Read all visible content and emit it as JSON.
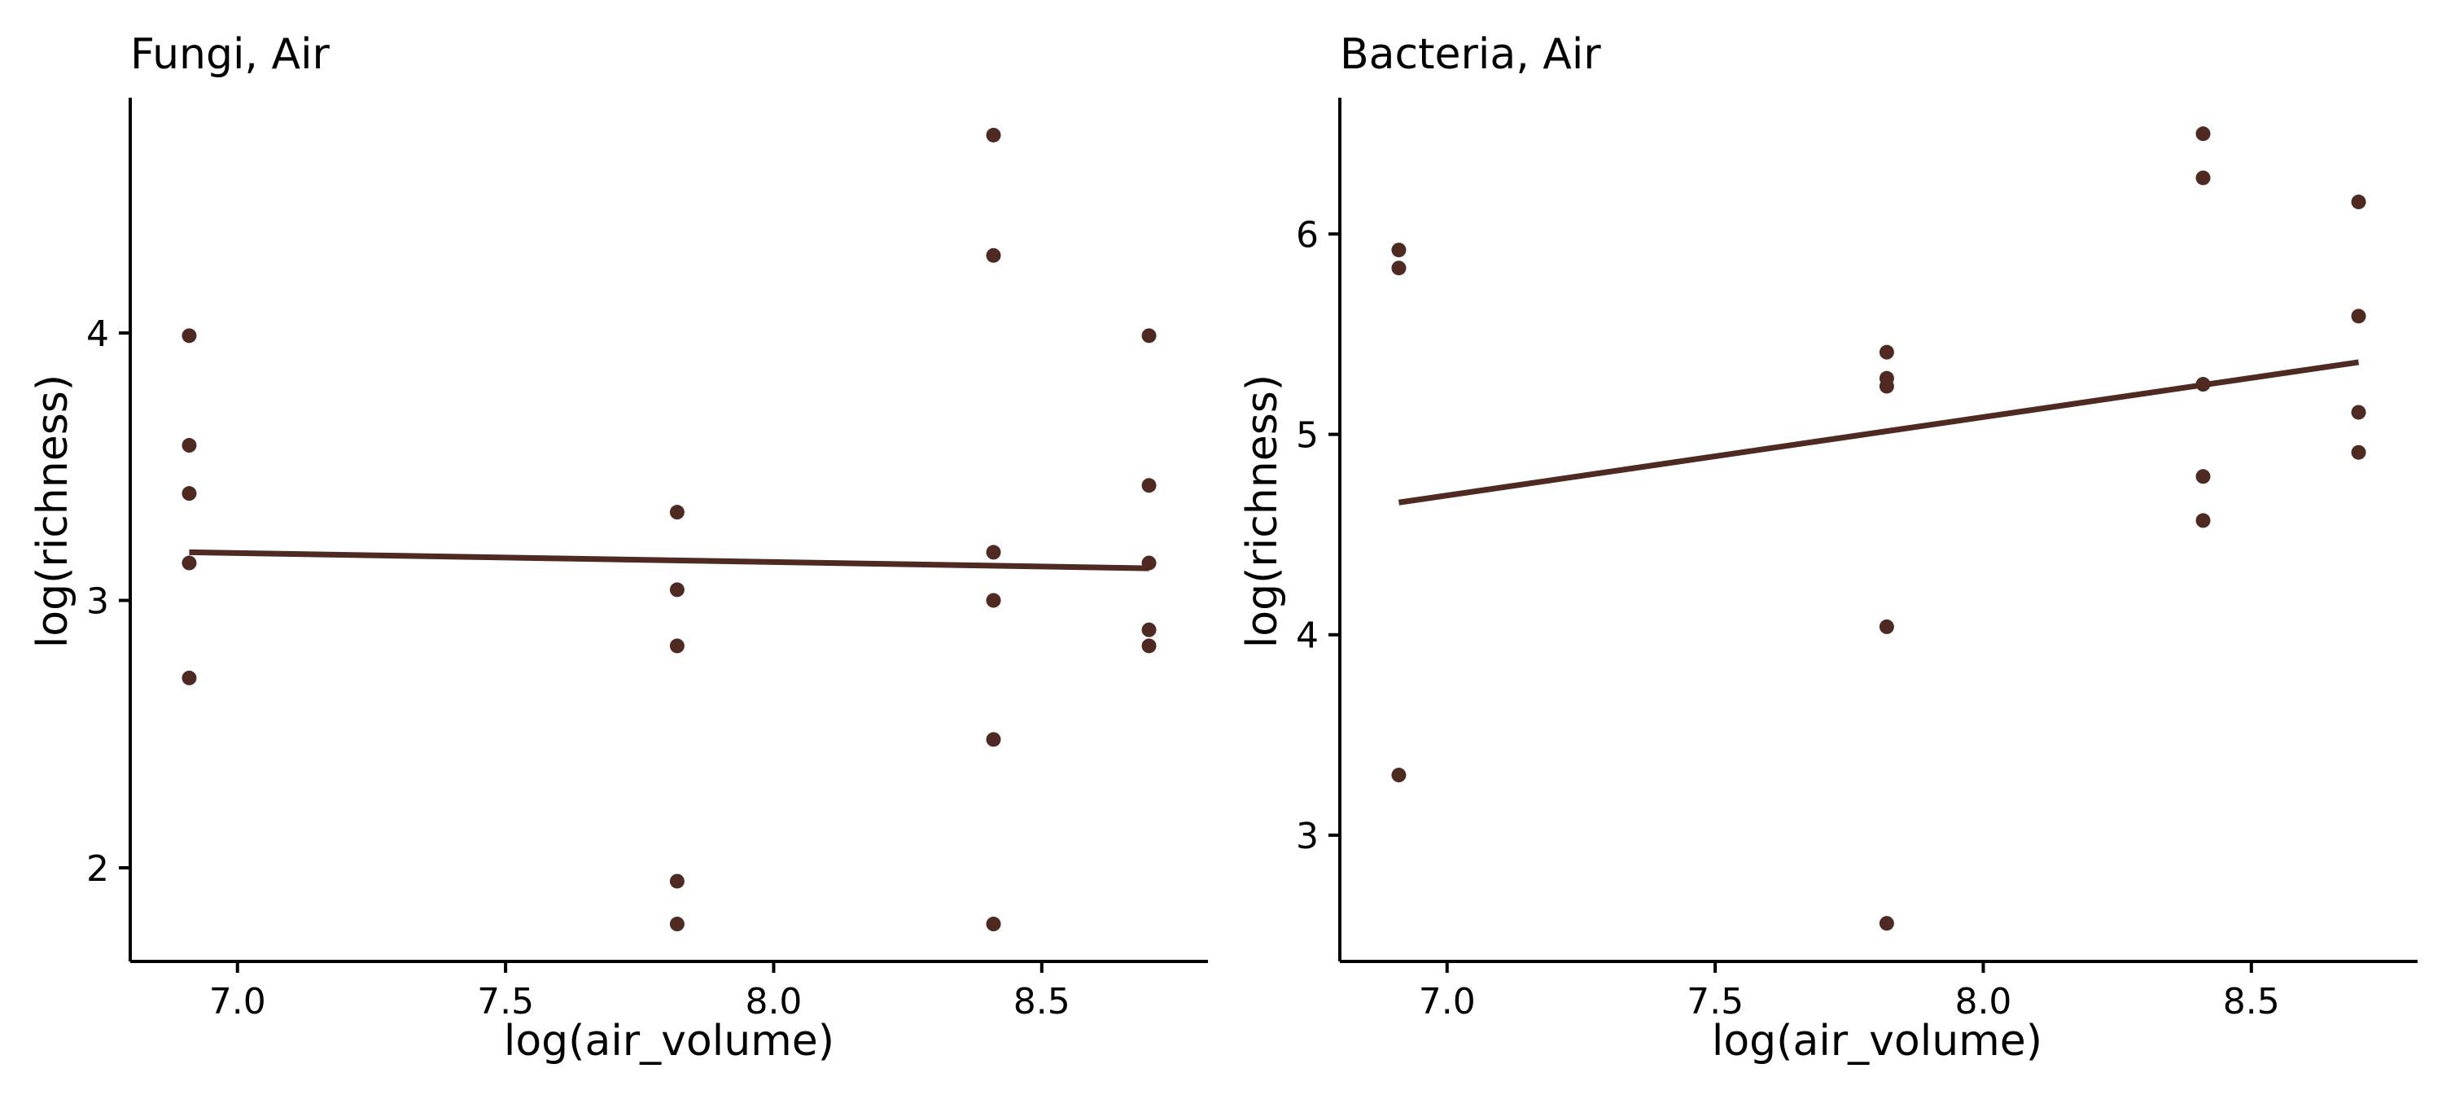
{
  "colors": {
    "point": "#4f2a22",
    "line": "#4f2a22",
    "axis": "#000000",
    "background": "#ffffff"
  },
  "chart_data": [
    {
      "type": "scatter",
      "title": "Fungi, Air",
      "xlabel": "log(air_volume)",
      "ylabel": "log(richness)",
      "xlim": [
        6.8,
        8.81
      ],
      "ylim": [
        1.65,
        4.88
      ],
      "xticks": [
        7.0,
        7.5,
        8.0,
        8.5
      ],
      "xtick_labels": [
        "7.0",
        "7.5",
        "8.0",
        "8.5"
      ],
      "yticks": [
        2,
        3,
        4
      ],
      "ytick_labels": [
        "2",
        "3",
        "4"
      ],
      "grid": false,
      "legend": "none",
      "points": [
        {
          "x": 6.91,
          "y": 3.99
        },
        {
          "x": 6.91,
          "y": 3.58
        },
        {
          "x": 6.91,
          "y": 3.4
        },
        {
          "x": 6.91,
          "y": 3.14
        },
        {
          "x": 6.91,
          "y": 2.71
        },
        {
          "x": 7.82,
          "y": 3.33
        },
        {
          "x": 7.82,
          "y": 3.04
        },
        {
          "x": 7.82,
          "y": 2.83
        },
        {
          "x": 7.82,
          "y": 1.95
        },
        {
          "x": 7.82,
          "y": 1.79
        },
        {
          "x": 8.41,
          "y": 4.74
        },
        {
          "x": 8.41,
          "y": 4.29
        },
        {
          "x": 8.41,
          "y": 3.18
        },
        {
          "x": 8.41,
          "y": 3.0
        },
        {
          "x": 8.41,
          "y": 2.48
        },
        {
          "x": 8.41,
          "y": 1.79
        },
        {
          "x": 8.7,
          "y": 3.99
        },
        {
          "x": 8.7,
          "y": 3.43
        },
        {
          "x": 8.7,
          "y": 3.14
        },
        {
          "x": 8.7,
          "y": 2.89
        },
        {
          "x": 8.7,
          "y": 2.83
        }
      ],
      "fit_line": {
        "x": [
          6.91,
          8.7
        ],
        "y": [
          3.18,
          3.12
        ]
      }
    },
    {
      "type": "scatter",
      "title": "Bacteria, Air",
      "xlabel": "log(air_volume)",
      "ylabel": "log(richness)",
      "xlim": [
        6.8,
        8.81
      ],
      "ylim": [
        2.37,
        6.68
      ],
      "xticks": [
        7.0,
        7.5,
        8.0,
        8.5
      ],
      "xtick_labels": [
        "7.0",
        "7.5",
        "8.0",
        "8.5"
      ],
      "yticks": [
        3,
        4,
        5,
        6
      ],
      "ytick_labels": [
        "3",
        "4",
        "5",
        "6"
      ],
      "grid": false,
      "legend": "none",
      "points": [
        {
          "x": 6.91,
          "y": 5.92
        },
        {
          "x": 6.91,
          "y": 5.83
        },
        {
          "x": 6.91,
          "y": 3.3
        },
        {
          "x": 7.82,
          "y": 5.41
        },
        {
          "x": 7.82,
          "y": 5.28
        },
        {
          "x": 7.82,
          "y": 5.24
        },
        {
          "x": 7.82,
          "y": 4.04
        },
        {
          "x": 7.82,
          "y": 2.56
        },
        {
          "x": 8.41,
          "y": 6.5
        },
        {
          "x": 8.41,
          "y": 6.28
        },
        {
          "x": 8.41,
          "y": 5.25
        },
        {
          "x": 8.41,
          "y": 4.79
        },
        {
          "x": 8.41,
          "y": 4.57
        },
        {
          "x": 8.7,
          "y": 6.16
        },
        {
          "x": 8.7,
          "y": 5.59
        },
        {
          "x": 8.7,
          "y": 5.11
        },
        {
          "x": 8.7,
          "y": 4.91
        }
      ],
      "fit_line": {
        "x": [
          6.91,
          8.7
        ],
        "y": [
          4.66,
          5.36
        ]
      }
    }
  ]
}
